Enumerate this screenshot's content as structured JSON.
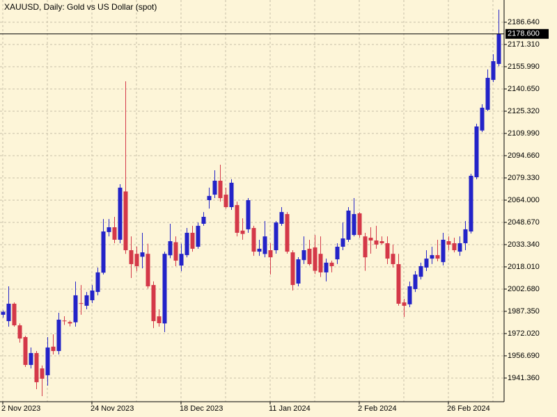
{
  "chart_data": {
    "type": "candlestick",
    "title": "XAUUSD, Daily:  Gold vs US Dollar (spot)",
    "categories": [
      "2 Nov 2023",
      null,
      null,
      null,
      null,
      null,
      null,
      null,
      null,
      null,
      null,
      null,
      null,
      null,
      null,
      null,
      "24 Nov 2023",
      null,
      null,
      null,
      null,
      null,
      null,
      null,
      null,
      null,
      null,
      null,
      null,
      null,
      null,
      null,
      "18 Dec 2023",
      null,
      null,
      null,
      null,
      null,
      null,
      null,
      null,
      null,
      null,
      null,
      null,
      null,
      null,
      null,
      "11 Jan 2024",
      null,
      null,
      null,
      null,
      null,
      null,
      null,
      null,
      null,
      null,
      null,
      null,
      null,
      null,
      null,
      "2 Feb 2024",
      null,
      null,
      null,
      null,
      null,
      null,
      null,
      null,
      null,
      null,
      null,
      null,
      null,
      null,
      null,
      "26 Feb 2024",
      null,
      null,
      null,
      null,
      null,
      null,
      null,
      null,
      null
    ],
    "open": [
      1985,
      1980.6,
      1992.6,
      1977.7,
      1969.6,
      1950.4,
      1958.6,
      1948,
      1943.3,
      1963,
      1960,
      1981,
      1980,
      1979.8,
      1993,
      1991.2,
      1995,
      2000.7,
      2014,
      2042,
      2045.3,
      2036.7,
      2070,
      2029.5,
      2027,
      2025,
      2027,
      2005.5,
      1983.9,
      1979,
      2026,
      2035,
      2018.9,
      2026.1,
      2041.5,
      2031.9,
      2047.7,
      2064,
      2067.8,
      2077.4,
      2067.8,
      2059.2,
      2060.6,
      2043,
      2043.9,
      2044.8,
      2028.5,
      2026.9,
      2029.5,
      2029.5,
      2047.7,
      2054.4,
      2028,
      2006.5,
      2022.7,
      2030.5,
      2031.4,
      2027,
      2014.2,
      2020.9,
      2023.2,
      2031.9,
      2036.7,
      2040,
      2054.9,
      2039,
      2038.1,
      2036.2,
      2035.7,
      2034.3,
      2027,
      2019.9,
      1993.5,
      1992.2,
      2002.7,
      2011.2,
      2017.5,
      2023.7,
      2026.1,
      2021.3,
      2035.7,
      2034.3,
      2028.5,
      2034.3,
      2042.4,
      2079.8,
      2112,
      2126.3,
      2146.9,
      2157.9
    ],
    "high": [
      1988,
      2004.6,
      1993.5,
      1979,
      1970.5,
      1962.4,
      1960,
      1950,
      1969.6,
      1971.5,
      1986.4,
      1984,
      1981,
      2007.9,
      2005.5,
      2000.7,
      2005.5,
      2017.5,
      2051,
      2051,
      2052.5,
      2075,
      2145.9,
      2039,
      2032,
      2041.5,
      2034,
      2008,
      1988.8,
      2028.5,
      2047.7,
      2039,
      2034,
      2044.8,
      2046.3,
      2048.6,
      2055.8,
      2072.6,
      2084.6,
      2088.4,
      2072.6,
      2078.4,
      2063,
      2051.5,
      2065.4,
      2046.3,
      2036.7,
      2049.6,
      2034.3,
      2049.6,
      2059.2,
      2055.8,
      2029.5,
      2024.7,
      2039,
      2036.7,
      2040,
      2039,
      2023.7,
      2022.3,
      2034.3,
      2048.6,
      2059.2,
      2065.4,
      2055.8,
      2041.5,
      2045.3,
      2046.3,
      2039,
      2039,
      2033.4,
      2027,
      1995.9,
      2007.9,
      2015.1,
      2020.9,
      2029.5,
      2031.9,
      2036.7,
      2041.5,
      2039,
      2038.1,
      2039,
      2049.6,
      2082.2,
      2116.7,
      2130.1,
      2154.1,
      2164.6,
      2195.3
    ],
    "low": [
      1983,
      1976.8,
      1976.8,
      1965.8,
      1949,
      1948,
      1933.7,
      1928.9,
      1936.1,
      1957.6,
      1957.6,
      1978,
      1977,
      1976.8,
      1985,
      1988.8,
      1993,
      1998.4,
      2012.7,
      2039,
      2034.3,
      2034.3,
      2027,
      2010.3,
      2015,
      2017,
      2003.1,
      1975.8,
      1976.8,
      1973,
      2024,
      2018.5,
      2015,
      2024.6,
      2028.5,
      2030.5,
      2046.3,
      2058.2,
      2065.4,
      2063,
      2058.2,
      2057.3,
      2039,
      2036.7,
      2041.5,
      2025.6,
      2025.6,
      2024.6,
      2012.7,
      2027.1,
      2046.3,
      2027.1,
      2001.7,
      2004.6,
      2020,
      2018.9,
      2013,
      2011,
      2008,
      2014.2,
      2020,
      2029.5,
      2035.2,
      2039,
      2038.1,
      2015.3,
      2027.1,
      2030.5,
      2033.3,
      2019.9,
      2017.5,
      1991.2,
      1983.5,
      1990.2,
      2000.7,
      2009.3,
      2015.1,
      2020,
      2021.8,
      2019,
      2029.5,
      2028,
      2025.6,
      2029.5,
      2041,
      2078.4,
      2110.9,
      2125.3,
      2145.4,
      2156.4
    ],
    "close": [
      1987,
      1992.6,
      1977.7,
      1968.6,
      1950.4,
      1958.6,
      1938.5,
      1940.9,
      1962.4,
      1960,
      1981.6,
      1980.6,
      1979,
      1998.4,
      1992.6,
      1998.4,
      2001.7,
      2014.2,
      2042.4,
      2045.3,
      2036.7,
      2072.6,
      2029.5,
      2019.9,
      2018.5,
      2028,
      2004.6,
      1980.6,
      1979.2,
      2027,
      2035.7,
      2022.3,
      2027,
      2041.5,
      2030.5,
      2046.3,
      2052.5,
      2066.9,
      2077.4,
      2065.4,
      2059.2,
      2076,
      2041.5,
      2040.7,
      2064,
      2028.5,
      2030.5,
      2039,
      2024.6,
      2048.6,
      2055.8,
      2028.5,
      2005.5,
      2023.2,
      2029.5,
      2019.9,
      2015.3,
      2014.2,
      2020.9,
      2018.5,
      2031.9,
      2037.6,
      2056.8,
      2054.4,
      2040,
      2024.6,
      2036.2,
      2033.4,
      2034.3,
      2023.7,
      2019.9,
      1992.6,
      1991.2,
      2004.6,
      2012.7,
      2018.5,
      2023.7,
      2026.1,
      2023.7,
      2036.7,
      2033.3,
      2029.5,
      2034.3,
      2043.9,
      2080.8,
      2114.8,
      2127.7,
      2148.3,
      2159.8,
      2178.6
    ],
    "up_color": "#2323c8",
    "down_color": "#d43848",
    "last_price": {
      "value": 2178.6,
      "label": "2178.600"
    },
    "ylim": [
      1925.05,
      2201.97
    ],
    "yticks": [
      {
        "value": 1941.36,
        "label": "1941.360"
      },
      {
        "value": 1956.69,
        "label": "1956.690"
      },
      {
        "value": 1972.02,
        "label": "1972.020"
      },
      {
        "value": 1987.35,
        "label": "1987.350"
      },
      {
        "value": 2002.68,
        "label": "2002.680"
      },
      {
        "value": 2018.01,
        "label": "2018.010"
      },
      {
        "value": 2033.34,
        "label": "2033.340"
      },
      {
        "value": 2048.67,
        "label": "2048.670"
      },
      {
        "value": 2064,
        "label": "2064.000"
      },
      {
        "value": 2079.33,
        "label": "2079.330"
      },
      {
        "value": 2094.66,
        "label": "2094.660"
      },
      {
        "value": 2109.99,
        "label": "2109.990"
      },
      {
        "value": 2125.32,
        "label": "2125.320"
      },
      {
        "value": 2140.65,
        "label": "2140.650"
      },
      {
        "value": 2155.99,
        "label": "2155.990"
      },
      {
        "value": 2171.31,
        "label": "2171.310"
      },
      {
        "value": 2186.64,
        "label": "2186.640"
      }
    ],
    "grid": true
  }
}
